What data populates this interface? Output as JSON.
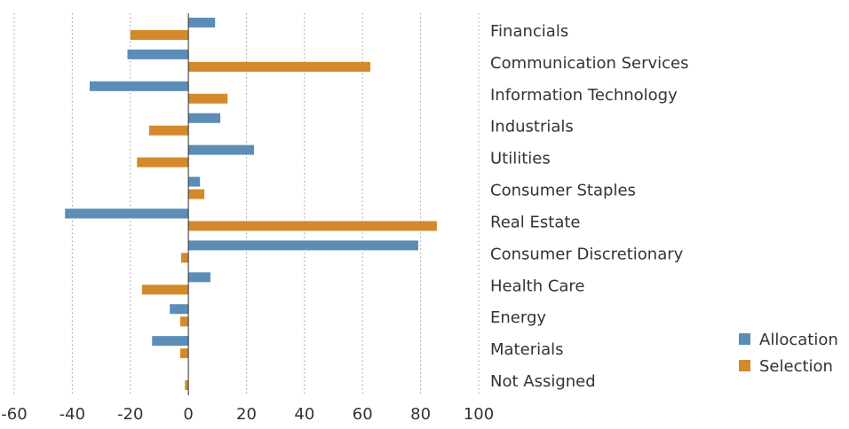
{
  "chart_data": {
    "type": "hbar",
    "categories": [
      "Financials",
      "Communication Services",
      "Information Technology",
      "Industrials",
      "Utilities",
      "Consumer Staples",
      "Real Estate",
      "Consumer Discretionary",
      "Health Care",
      "Energy",
      "Materials",
      "Not Assigned"
    ],
    "series": [
      {
        "name": "Allocation",
        "color": "#5b8db8",
        "values": [
          9.2,
          -21,
          -34,
          11,
          22.6,
          4,
          -42.5,
          79.2,
          7.6,
          -6.4,
          -12.5,
          0
        ]
      },
      {
        "name": "Selection",
        "color": "#d4892a",
        "values": [
          -20,
          62.7,
          13.5,
          -13.5,
          -17.7,
          5.5,
          85.6,
          -2.5,
          -16,
          -2.8,
          -2.8,
          -1.2
        ]
      }
    ],
    "xlim": [
      -60,
      100
    ],
    "xticks": [
      -60,
      -40,
      -20,
      0,
      20,
      40,
      60,
      80,
      100
    ],
    "grid": true,
    "legend": "lower right"
  }
}
